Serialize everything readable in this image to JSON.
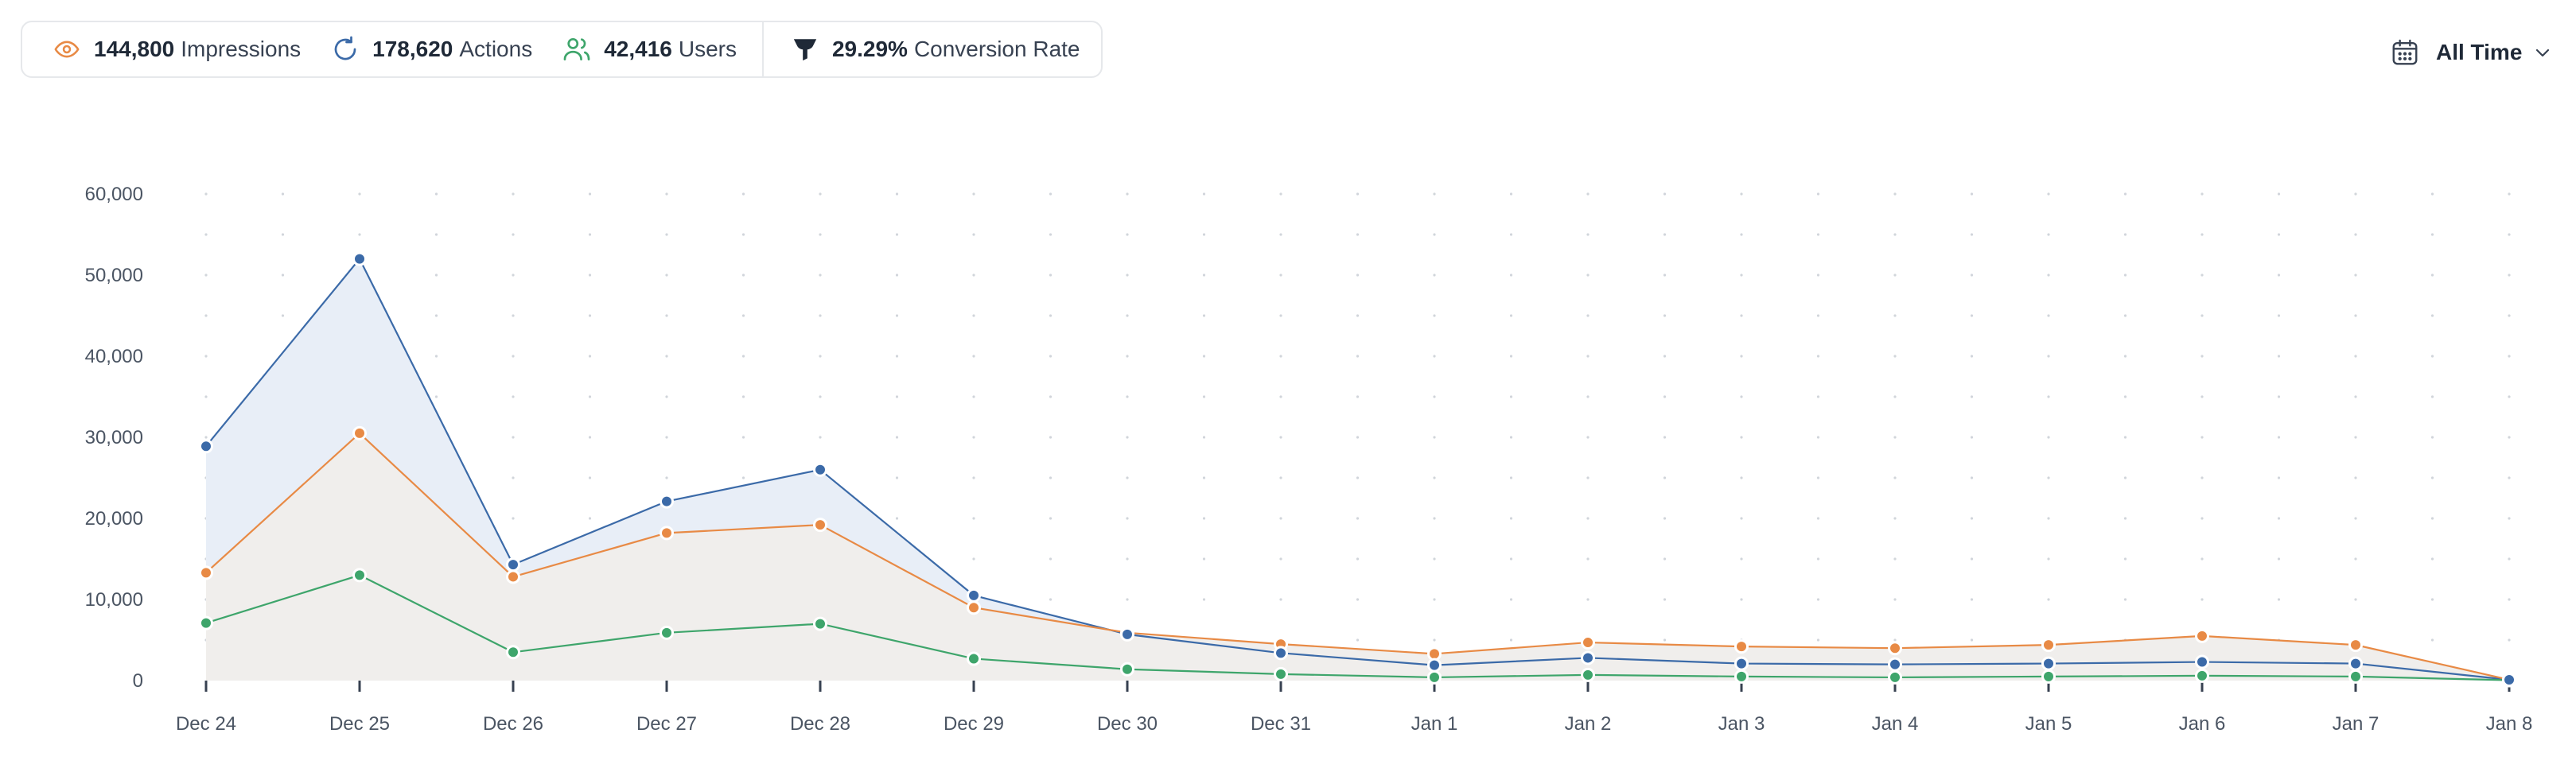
{
  "stats": [
    {
      "value": "144,800",
      "label": "Impressions",
      "icon": "eye-icon",
      "color": "#e88a45"
    },
    {
      "value": "178,620",
      "label": "Actions",
      "icon": "refresh-icon",
      "color": "#3b6aa8"
    },
    {
      "value": "42,416",
      "label": "Users",
      "icon": "users-icon",
      "color": "#3ea56b"
    }
  ],
  "conversion": {
    "value": "29.29%",
    "label": "Conversion Rate",
    "icon": "funnel-icon",
    "color": "#1f2937"
  },
  "time_filter": {
    "label": "All Time",
    "icon": "calendar-icon"
  },
  "colors": {
    "actions": "#3b6aa8",
    "impressions": "#e88a45",
    "users": "#3ea56b",
    "grid": "#d1d5db"
  },
  "chart_data": {
    "type": "area",
    "title": "",
    "xlabel": "",
    "ylabel": "",
    "categories": [
      "Dec 24",
      "Dec 25",
      "Dec 26",
      "Dec 27",
      "Dec 28",
      "Dec 29",
      "Dec 30",
      "Dec 31",
      "Jan 1",
      "Jan 2",
      "Jan 3",
      "Jan 4",
      "Jan 5",
      "Jan 6",
      "Jan 7",
      "Jan 8"
    ],
    "ylim": [
      0,
      60000
    ],
    "yticks": [
      0,
      10000,
      20000,
      30000,
      40000,
      50000,
      60000
    ],
    "ytick_labels": [
      "0",
      "10,000",
      "20,000",
      "30,000",
      "40,000",
      "50,000",
      "60,000"
    ],
    "grid": true,
    "series": [
      {
        "name": "Actions",
        "color": "#3b6aa8",
        "fill": "#e8eef7",
        "values": [
          28900,
          52000,
          14300,
          22100,
          26000,
          10500,
          5700,
          3400,
          1900,
          2800,
          2100,
          2000,
          2100,
          2300,
          2100,
          100
        ]
      },
      {
        "name": "Impressions",
        "color": "#e88a45",
        "fill": "#f0eeec",
        "values": [
          13300,
          30500,
          12800,
          18200,
          19200,
          9000,
          5900,
          4500,
          3300,
          4700,
          4200,
          4000,
          4400,
          5500,
          4400,
          100
        ]
      },
      {
        "name": "Users",
        "color": "#3ea56b",
        "fill": "none",
        "values": [
          7100,
          13000,
          3500,
          5900,
          7000,
          2700,
          1400,
          800,
          400,
          700,
          500,
          400,
          500,
          600,
          500,
          50
        ]
      }
    ]
  }
}
